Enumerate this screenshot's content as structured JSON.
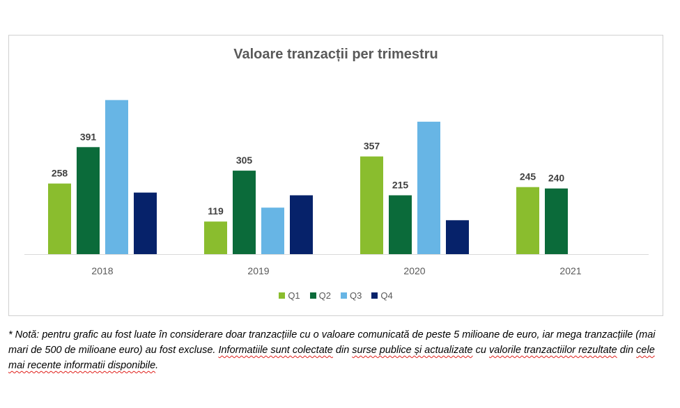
{
  "chart_data": {
    "type": "bar",
    "title": "Valoare tranzacții per trimestru",
    "categories": [
      "2018",
      "2019",
      "2020",
      "2021"
    ],
    "series": [
      {
        "name": "Q1",
        "color": "#8abd2e",
        "values": [
          258,
          119,
          357,
          245
        ]
      },
      {
        "name": "Q2",
        "color": "#0b6b3a",
        "values": [
          391,
          305,
          215,
          240
        ]
      },
      {
        "name": "Q3",
        "color": "#67b5e5",
        "values": [
          563,
          170,
          484,
          null
        ]
      },
      {
        "name": "Q4",
        "color": "#06226a",
        "values": [
          225,
          215,
          124,
          null
        ]
      }
    ],
    "data_labels": {
      "Q1": [
        "258",
        "119",
        "357",
        "245"
      ],
      "Q2": [
        "391",
        "305",
        "215",
        "240"
      ],
      "Q3": [
        "",
        "",
        "",
        ""
      ],
      "Q4": [
        "",
        "",
        "",
        ""
      ]
    },
    "ylim": [
      0,
      580
    ],
    "grid": false,
    "legend": "bottom"
  },
  "note": {
    "plain_1": "* Notă: pentru grafic au fost luate în considerare doar tranzacțiile cu o valoare comunicată de peste 5 milioane de euro, iar mega tranzacțiile (mai mari de 500 de milioane euro) au fost excluse.",
    "marked_1": "Informatiile sunt colectate",
    "plain_2": "din",
    "marked_2": "surse publice și actualizate",
    "plain_3": "cu",
    "marked_3": "valorile tranzactiilor rezultate",
    "plain_4": "din",
    "marked_4": "cele mai recente informatii disponibile",
    "end": "."
  }
}
